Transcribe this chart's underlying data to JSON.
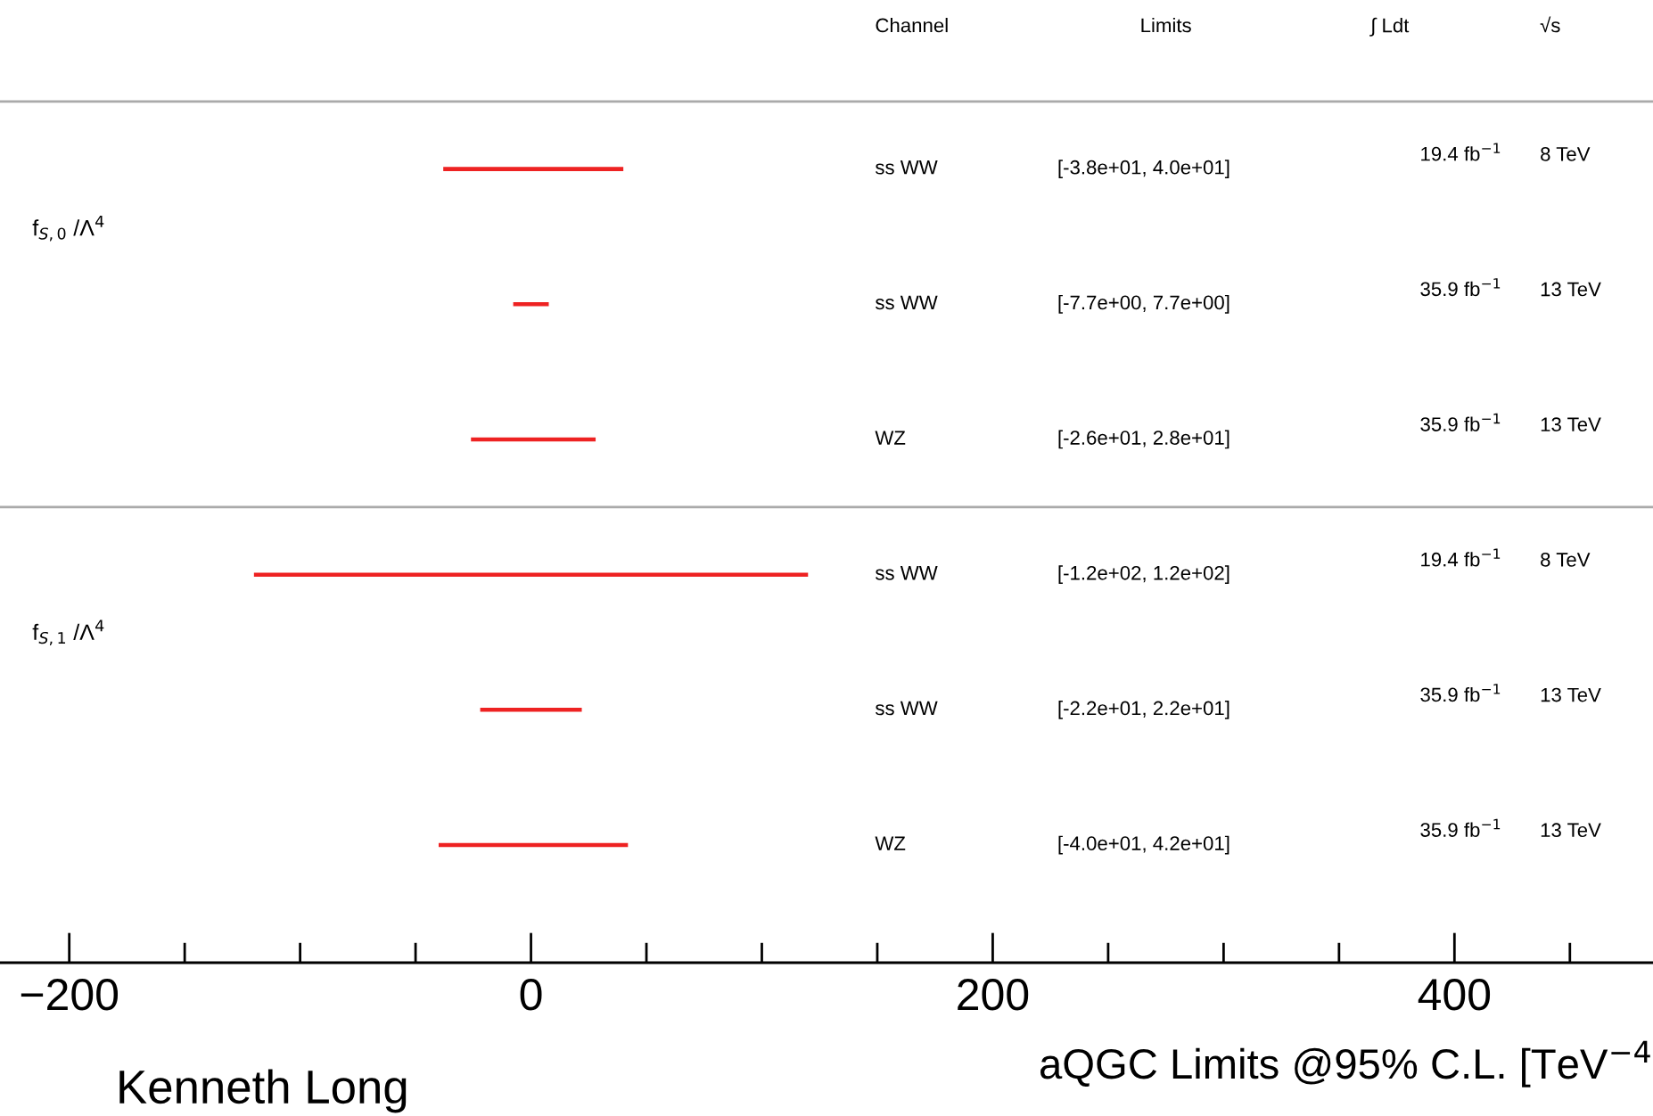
{
  "chart_data": {
    "type": "bar",
    "orientation": "horizontal",
    "categories": [
      null,
      null,
      null,
      null,
      null,
      null
    ],
    "base": [
      -38,
      -7.7,
      -26,
      -120,
      -22,
      -40
    ],
    "values": [
      78,
      15.4,
      54,
      240,
      44,
      82
    ],
    "value_labels": [
      "[-3.8e+01, 4.0e+01]",
      "[-7.7e+00, 7.7e+00]",
      "[-2.6e+01, 2.8e+01]",
      "[-1.2e+02, 1.2e+02]",
      "[-2.2e+01, 2.2e+01]",
      "[-4.0e+01, 4.2e+01]"
    ],
    "color": "#ee2222",
    "xlabel": "aQGC Limits @95% C.L. [TeV$^{−4}$",
    "xlim": [
      -230,
      486
    ],
    "xticks": [
      {
        "value": -200,
        "label": "−200"
      },
      {
        "value": 0,
        "label": "0"
      },
      {
        "value": 200,
        "label": "200"
      },
      {
        "value": 400,
        "label": "400"
      }
    ],
    "tick_labels": "x",
    "grid": false,
    "annotations": [
      "Channel",
      "Limits",
      "∫ Ldt",
      "√s",
      "ss WW",
      "19.4 fb$^{−1}$",
      "8 TeV",
      "ss WW",
      "35.9 fb$^{−1}$",
      "13 TeV",
      "WZ",
      "35.9 fb$^{−1}$",
      "13 TeV",
      "ss WW",
      "19.4 fb$^{−1}$",
      "8 TeV",
      "ss WW",
      "35.9 fb$^{−1}$",
      "13 TeV",
      "WZ",
      "35.9 fb$^{−1}$",
      "13 TeV",
      "f$_{S,0}$ /Λ$^{4}$",
      "f$_{S,1}$ /Λ$^{4}$",
      "Kenneth Long"
    ]
  }
}
